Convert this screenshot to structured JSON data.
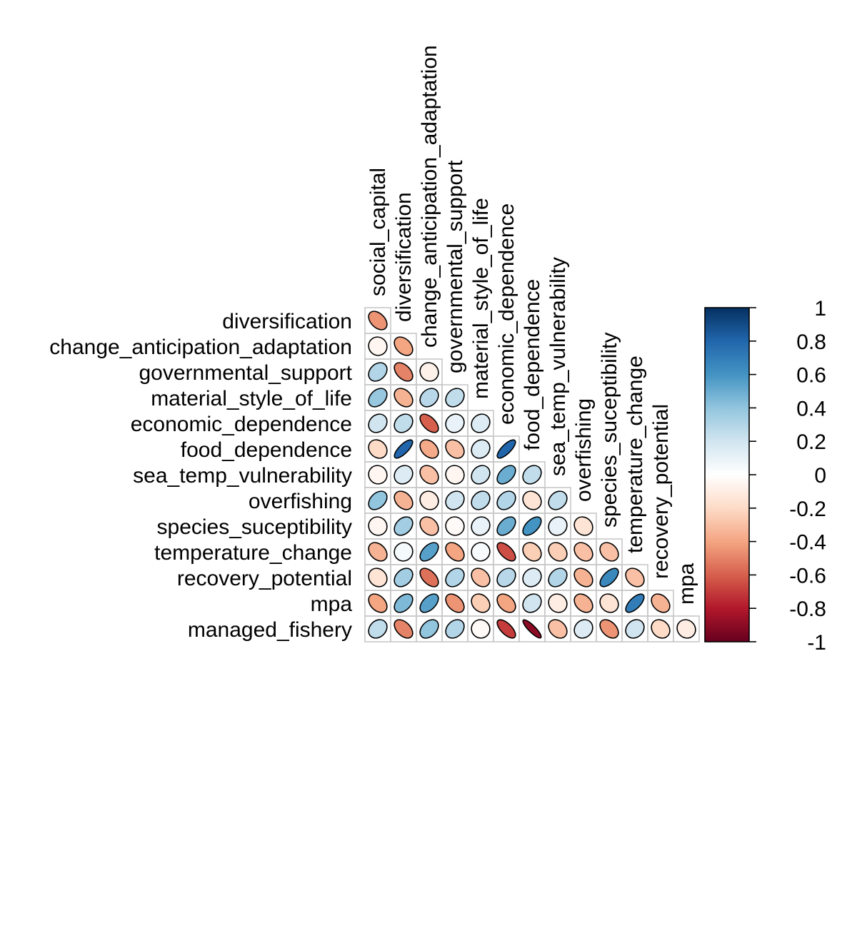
{
  "chart_data": {
    "type": "heatmap",
    "title": "",
    "method": "ellipse",
    "layout": "lower",
    "variables": [
      "social_capital",
      "diversification",
      "change_anticipation_adaptation",
      "governmental_support",
      "material_style_of_life",
      "economic_dependence",
      "food_dependence",
      "sea_temp_vulnerability",
      "overfishing",
      "species_suceptibility",
      "temperature_change",
      "recovery_potential",
      "mpa",
      "managed_fishery"
    ],
    "row_labels": [
      "diversification",
      "change_anticipation_adaptation",
      "governmental_support",
      "material_style_of_life",
      "economic_dependence",
      "food_dependence",
      "sea_temp_vulnerability",
      "overfishing",
      "species_suceptibility",
      "temperature_change",
      "recovery_potential",
      "mpa",
      "managed_fishery"
    ],
    "column_labels": [
      "social_capital",
      "diversification",
      "change_anticipation_adaptation",
      "governmental_support",
      "material_style_of_life",
      "economic_dependence",
      "food_dependence",
      "sea_temp_vulnerability",
      "overfishing",
      "species_suceptibility",
      "temperature_change",
      "recovery_potential",
      "mpa"
    ],
    "matrix_lower": [
      [
        -0.45
      ],
      [
        -0.05,
        -0.4
      ],
      [
        0.3,
        -0.5,
        -0.08
      ],
      [
        0.38,
        -0.35,
        0.28,
        0.25
      ],
      [
        0.2,
        0.25,
        -0.6,
        0.1,
        0.15
      ],
      [
        -0.2,
        0.8,
        -0.38,
        -0.3,
        0.15,
        0.8
      ],
      [
        -0.05,
        0.15,
        -0.3,
        -0.05,
        0.2,
        0.5,
        0.25
      ],
      [
        0.4,
        -0.35,
        -0.1,
        0.2,
        0.25,
        0.3,
        -0.15,
        0.25
      ],
      [
        -0.05,
        0.35,
        -0.3,
        -0.03,
        0.1,
        0.5,
        0.6,
        0.1,
        -0.15
      ],
      [
        -0.35,
        0.05,
        0.55,
        -0.4,
        0.03,
        -0.65,
        -0.25,
        -0.25,
        -0.3,
        -0.3
      ],
      [
        -0.15,
        0.35,
        -0.55,
        0.3,
        -0.3,
        0.28,
        0.15,
        0.3,
        -0.35,
        0.65,
        -0.3
      ],
      [
        -0.4,
        0.45,
        0.55,
        -0.45,
        -0.25,
        -0.4,
        0.2,
        -0.1,
        -0.35,
        -0.15,
        0.7,
        -0.35
      ],
      [
        0.25,
        -0.5,
        0.4,
        0.3,
        -0.03,
        -0.7,
        -0.9,
        -0.3,
        0.15,
        -0.45,
        0.2,
        -0.2,
        -0.1
      ]
    ],
    "colorbar": {
      "ticks": [
        "1",
        "0.8",
        "0.6",
        "0.4",
        "0.2",
        "0",
        "-0.2",
        "-0.4",
        "-0.6",
        "-0.8",
        "-1"
      ],
      "colors": [
        "#67001F",
        "#B2182B",
        "#D6604D",
        "#F4A582",
        "#FDDBC7",
        "#FFFFFF",
        "#D1E5F0",
        "#92C5DE",
        "#4393C3",
        "#2166AC",
        "#053061"
      ],
      "range": [
        -1,
        1
      ]
    }
  }
}
